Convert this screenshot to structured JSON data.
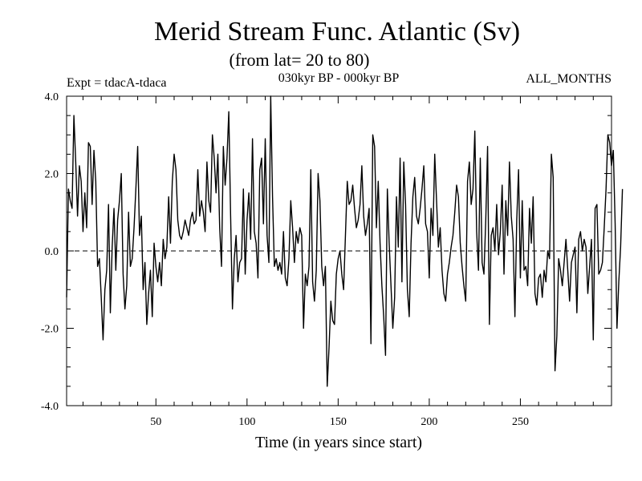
{
  "chart_data": {
    "type": "line",
    "title": "Merid Stream Func. Atlantic (Sv)",
    "subtitle": "(from lat= 20 to 80)",
    "expt_label": "Expt = tdacA-tdaca",
    "period_label": "030kyr BP - 000kyr BP",
    "months_label": "ALL_MONTHS",
    "xlabel": "Time (in years since start)",
    "ylabel": "",
    "xlim": [
      1,
      300
    ],
    "ylim": [
      -4.0,
      4.0
    ],
    "xticks": [
      50,
      100,
      150,
      200,
      250
    ],
    "xtick_labels": [
      "50",
      "100",
      "150",
      "200",
      "250"
    ],
    "yticks": [
      -4.0,
      -2.0,
      0.0,
      2.0,
      4.0
    ],
    "ytick_labels": [
      "-4.0",
      "-2.0",
      "0.0",
      "2.0",
      "4.0"
    ],
    "reference_line": 0.0,
    "grid": false,
    "series": [
      {
        "name": "tdacA-tdaca",
        "x_start": 1,
        "x_step": 1,
        "values": [
          -1.2,
          1.6,
          1.3,
          1.1,
          3.5,
          2.3,
          0.9,
          2.2,
          1.8,
          0.5,
          1.5,
          0.6,
          2.8,
          2.7,
          1.2,
          2.6,
          1.8,
          -0.4,
          -0.2,
          -1.2,
          -2.3,
          -1.0,
          -0.5,
          1.2,
          -1.6,
          0.1,
          1.1,
          -0.5,
          0.8,
          1.3,
          2.0,
          -0.6,
          -1.5,
          -0.9,
          1.0,
          -0.4,
          -0.2,
          0.6,
          1.6,
          2.7,
          0.4,
          0.9,
          -1.0,
          -0.3,
          -1.9,
          -1.1,
          -0.5,
          -1.7,
          0.2,
          -0.4,
          -0.8,
          -0.3,
          -0.9,
          0.3,
          -0.2,
          0.1,
          1.4,
          0.2,
          1.8,
          2.5,
          2.1,
          0.8,
          0.4,
          0.3,
          0.5,
          0.8,
          0.6,
          0.4,
          0.8,
          1.0,
          0.7,
          0.8,
          2.1,
          0.9,
          1.3,
          1.0,
          0.5,
          2.3,
          1.3,
          1.0,
          3.0,
          2.4,
          1.5,
          2.5,
          0.6,
          -0.4,
          2.7,
          1.7,
          2.4,
          3.6,
          0.9,
          -1.5,
          -0.2,
          0.4,
          -0.8,
          -0.3,
          -0.2,
          1.6,
          -0.6,
          0.8,
          1.5,
          0.3,
          2.9,
          0.5,
          0.2,
          -0.7,
          2.1,
          2.4,
          0.7,
          2.9,
          0.4,
          -0.3,
          4.0,
          1.4,
          -0.4,
          -0.2,
          -0.5,
          -0.3,
          -0.6,
          0.5,
          -0.7,
          -0.9,
          -0.2,
          1.3,
          0.6,
          -0.3,
          0.5,
          0.2,
          0.6,
          0.4,
          -2.0,
          -0.6,
          -0.9,
          -0.4,
          2.1,
          -0.8,
          -1.3,
          -0.5,
          2.0,
          1.3,
          -0.4,
          -0.9,
          -0.4,
          -3.5,
          -2.5,
          -1.3,
          -1.8,
          -1.9,
          -0.6,
          -0.2,
          0.0,
          -0.6,
          -1.0,
          0.4,
          1.8,
          1.2,
          1.3,
          1.7,
          1.1,
          0.6,
          0.8,
          1.2,
          2.2,
          0.9,
          0.4,
          0.7,
          1.1,
          -2.4,
          3.0,
          2.7,
          0.6,
          1.8,
          0.2,
          -0.9,
          -1.7,
          -2.7,
          1.6,
          0.2,
          -0.9,
          -2.0,
          -1.2,
          1.4,
          0.1,
          2.4,
          -0.8,
          2.3,
          1.2,
          -1.0,
          -1.7,
          0.2,
          1.4,
          1.9,
          0.9,
          0.7,
          1.1,
          1.6,
          2.2,
          0.7,
          0.5,
          -0.7,
          1.1,
          0.4,
          2.5,
          1.3,
          0.1,
          0.6,
          -0.5,
          -1.1,
          -1.3,
          -0.6,
          -0.3,
          0.1,
          0.4,
          1.0,
          1.7,
          1.4,
          0.2,
          -0.4,
          -0.9,
          -1.3,
          1.8,
          2.3,
          1.2,
          1.6,
          3.1,
          0.5,
          -0.5,
          2.4,
          -0.3,
          -0.6,
          0.8,
          2.7,
          -1.9,
          0.4,
          0.6,
          0.0,
          1.2,
          -0.1,
          0.5,
          1.7,
          -0.6,
          1.3,
          0.4,
          2.3,
          0.9,
          0.3,
          -1.7,
          0.8,
          2.1,
          -0.7,
          1.3,
          -0.5,
          -0.4,
          -0.9,
          1.1,
          0.2,
          1.4,
          -1.1,
          -1.4,
          -0.7,
          -0.6,
          -1.2,
          -0.5,
          -0.8,
          0.0,
          -0.2,
          2.5,
          1.9,
          -3.1,
          -2.2,
          -0.2,
          -0.5,
          -0.9,
          -0.3,
          0.3,
          -0.5,
          -1.3,
          -0.3,
          -0.1,
          0.1,
          -1.6,
          0.3,
          0.5,
          0.0,
          0.3,
          0.1,
          -1.1,
          -0.4,
          0.3,
          -2.3,
          1.1,
          1.2,
          -0.6,
          -0.5,
          -0.3,
          0.6,
          1.6,
          3.0,
          2.8,
          2.2,
          2.6,
          0.7,
          -2.0,
          -0.8,
          0.1,
          1.6
        ]
      }
    ]
  }
}
